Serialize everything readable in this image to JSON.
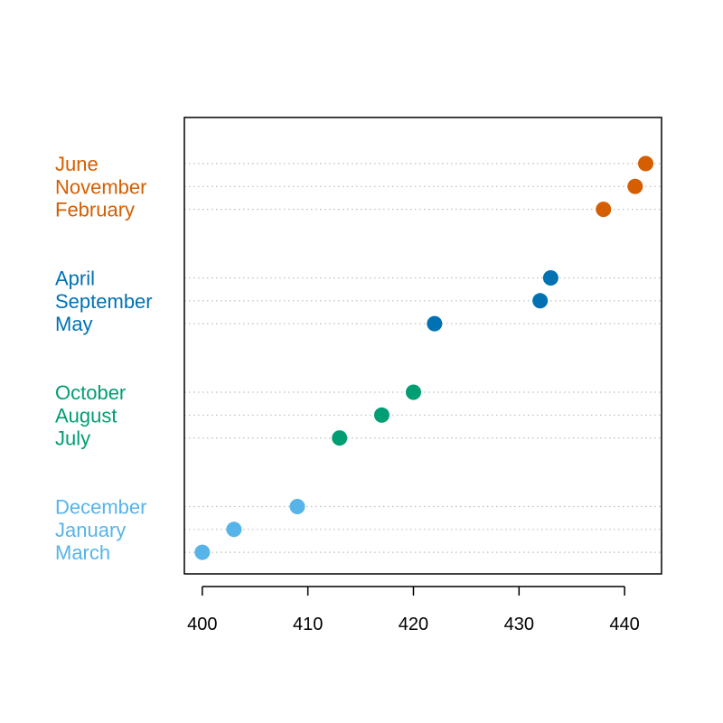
{
  "chart_data": {
    "type": "scatter",
    "title": "",
    "xlabel": "",
    "ylabel": "",
    "xlim": [
      398.3,
      443.5
    ],
    "x_ticks": [
      400,
      410,
      420,
      430,
      440
    ],
    "grid": "dotted horizontal line per row",
    "legend": "none",
    "groups": [
      {
        "color": "#D55E00",
        "points": [
          {
            "label": "June",
            "value": 442
          },
          {
            "label": "November",
            "value": 441
          },
          {
            "label": "February",
            "value": 438
          }
        ]
      },
      {
        "color": "#0072B2",
        "points": [
          {
            "label": "April",
            "value": 433
          },
          {
            "label": "September",
            "value": 432
          },
          {
            "label": "May",
            "value": 422
          }
        ]
      },
      {
        "color": "#009E73",
        "points": [
          {
            "label": "October",
            "value": 420
          },
          {
            "label": "August",
            "value": 417
          },
          {
            "label": "July",
            "value": 413
          }
        ]
      },
      {
        "color": "#56B4E9",
        "points": [
          {
            "label": "December",
            "value": 409
          },
          {
            "label": "January",
            "value": 403
          },
          {
            "label": "March",
            "value": 400
          }
        ]
      }
    ]
  }
}
